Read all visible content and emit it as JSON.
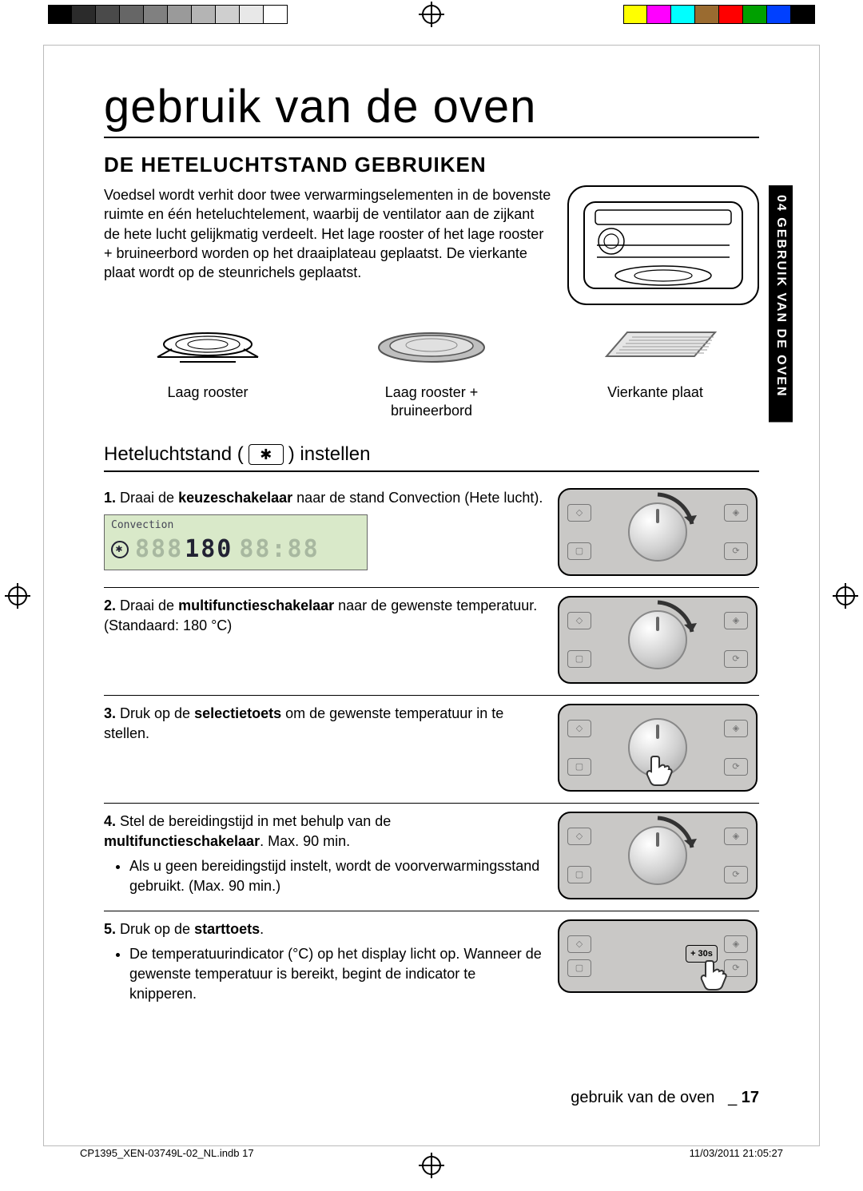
{
  "colorbar_left": [
    "#000000",
    "#2b2b2b",
    "#4a4a4a",
    "#666666",
    "#808080",
    "#9a9a9a",
    "#b4b4b4",
    "#cfcfcf",
    "#e8e8e8",
    "#ffffff"
  ],
  "colorbar_right": [
    "#ffff00",
    "#ff00ff",
    "#00ffff",
    "#9a6b30",
    "#ff0000",
    "#00a000",
    "#0040ff",
    "#000000"
  ],
  "page_title": "gebruik van de oven",
  "section_heading": "DE HETELUCHTSTAND GEBRUIKEN",
  "intro_paragraph": "Voedsel wordt verhit door twee verwarmingselementen in de bovenste ruimte en één heteluchtelement, waarbij de ventilator aan de zijkant de hete lucht gelijkmatig verdeelt. Het lage rooster of het lage rooster + bruineerbord worden op het draaiplateau geplaatst. De vierkante plaat wordt op de steunrichels geplaatst.",
  "side_tab_text": "04 GEBRUIK VAN DE OVEN",
  "accessories": [
    {
      "label": "Laag rooster"
    },
    {
      "label": "Laag rooster +\nbruineerbord"
    },
    {
      "label": "Vierkante plaat"
    }
  ],
  "subsection_prefix": "Heteluchtstand (",
  "subsection_suffix": ") instellen",
  "lcd": {
    "mode_label": "Convection",
    "display_value": "180",
    "dim_segments": "888",
    "dim_right": "88:88"
  },
  "steps": [
    {
      "num": "1.",
      "text_before_bold": "Draai de ",
      "bold": "keuzeschakelaar",
      "text_after_bold": " naar de stand Convection (Hete lucht).",
      "bullets": [],
      "has_lcd": true,
      "panel_arrow_rotation": 25
    },
    {
      "num": "2.",
      "text_before_bold": "Draai de ",
      "bold": "multifunctieschakelaar",
      "text_after_bold": " naar de gewenste temperatuur. (Standaard: 180 °C)",
      "bullets": [],
      "has_lcd": false,
      "panel_arrow_rotation": 140
    },
    {
      "num": "3.",
      "text_before_bold": "Druk op de ",
      "bold": "selectietoets",
      "text_after_bold": " om de gewenste temperatuur in te stellen.",
      "bullets": [],
      "has_lcd": false,
      "panel_hand": "center"
    },
    {
      "num": "4.",
      "text_before_bold": "Stel de bereidingstijd in met behulp van de ",
      "bold": "multifunctieschakelaar",
      "text_after_bold": ". Max. 90 min.",
      "bullets": [
        "Als u geen bereidingstijd instelt, wordt de voorverwarmingsstand gebruikt. (Max. 90 min.)"
      ],
      "has_lcd": false,
      "panel_arrow_rotation": 140
    },
    {
      "num": "5.",
      "text_before_bold": "Druk op de ",
      "bold": "starttoets",
      "text_after_bold": ".",
      "bullets": [
        "De temperatuurindicator (°C) op het display licht op. Wanneer de gewenste temperatuur is bereikt, begint de indicator te knipperen."
      ],
      "has_lcd": false,
      "panel_hand": "right",
      "panel_short": true,
      "panel_button_label": "+ 30s"
    }
  ],
  "footer_running_title": "gebruik van de oven",
  "footer_page_sep": "_",
  "footer_page_num": "17",
  "footer_file": "CP1395_XEN-03749L-02_NL.indb   17",
  "footer_timestamp": "11/03/2011   21:05:27"
}
